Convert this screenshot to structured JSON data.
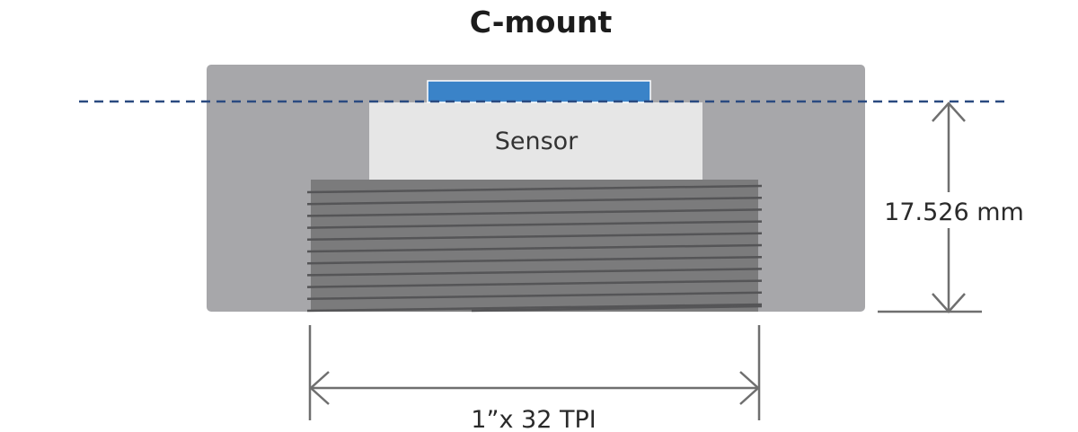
{
  "title": "C-mount",
  "sensor_label": "Sensor",
  "flange_distance_label": "17.526 mm",
  "thread_label": "1”x 32 TPI",
  "colors": {
    "housing": "#a7a7aa",
    "sensor": "#e6e6e6",
    "sensor_glass": "#3a83c8",
    "focal_line": "#2a4a80",
    "thread_body": "#7b7b7c",
    "thread_lines": "#555557",
    "dimension_lines": "#6f6f6f"
  }
}
